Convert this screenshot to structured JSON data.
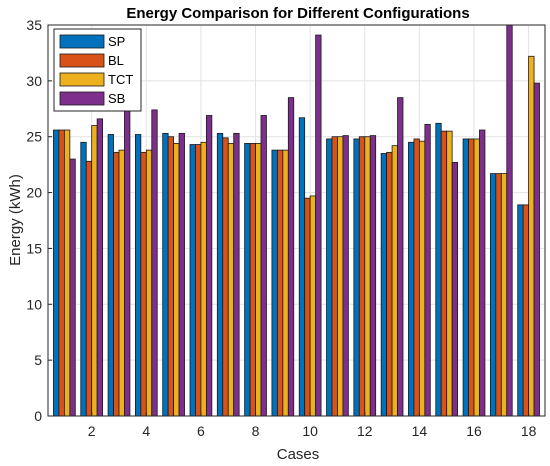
{
  "chart_data": {
    "type": "bar",
    "title": "Energy Comparison for Different Configurations",
    "xlabel": "Cases",
    "ylabel": "Energy (kWh)",
    "x": [
      1,
      2,
      3,
      4,
      5,
      6,
      7,
      8,
      9,
      10,
      11,
      12,
      13,
      14,
      15,
      16,
      17,
      18
    ],
    "xticks": [
      2,
      4,
      6,
      8,
      10,
      12,
      14,
      16,
      18
    ],
    "xlim": [
      0.4,
      18.6
    ],
    "ylim": [
      0,
      35
    ],
    "yticks": [
      0,
      5,
      10,
      15,
      20,
      25,
      30,
      35
    ],
    "grid": true,
    "legend_position": "top-left",
    "series": [
      {
        "name": "SP",
        "color": "#0072BD",
        "values": [
          25.6,
          24.5,
          25.2,
          25.2,
          25.3,
          24.3,
          25.3,
          24.4,
          23.8,
          26.7,
          24.8,
          24.8,
          23.5,
          24.5,
          26.2,
          24.8,
          21.7,
          18.9
        ]
      },
      {
        "name": "BL",
        "color": "#D95319",
        "values": [
          25.6,
          22.8,
          23.6,
          23.6,
          25.0,
          24.3,
          24.9,
          24.4,
          23.8,
          19.5,
          25.0,
          25.0,
          23.6,
          24.8,
          25.5,
          24.8,
          21.7,
          18.9
        ]
      },
      {
        "name": "TCT",
        "color": "#EDB120",
        "values": [
          25.6,
          26.0,
          23.8,
          23.8,
          24.4,
          24.5,
          24.4,
          24.4,
          23.8,
          19.7,
          25.0,
          25.0,
          24.2,
          24.6,
          25.5,
          24.8,
          21.7,
          32.2
        ]
      },
      {
        "name": "SB",
        "color": "#7E2F8E",
        "values": [
          23.0,
          26.6,
          27.4,
          27.4,
          25.3,
          26.9,
          25.3,
          26.9,
          28.5,
          34.1,
          25.1,
          25.1,
          28.5,
          26.1,
          22.7,
          25.6,
          35.0,
          29.8
        ]
      }
    ]
  }
}
